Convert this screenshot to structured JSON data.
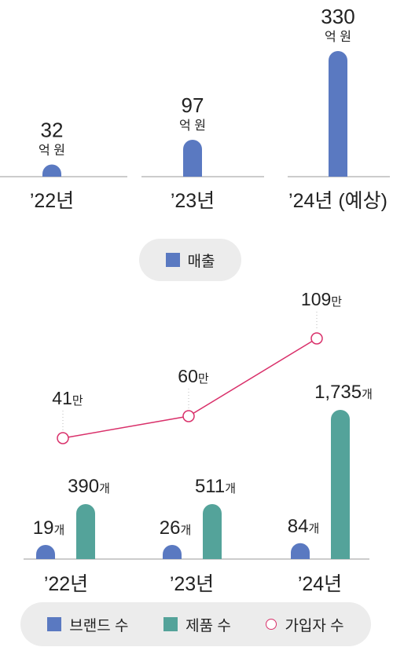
{
  "colors": {
    "revenue": "#5a79c1",
    "brands": "#5a79c1",
    "products": "#54a39a",
    "members": "#d9306a"
  },
  "chart_data": [
    {
      "type": "bar",
      "categories": [
        "’22년",
        "’23년",
        "’24년 (예상)"
      ],
      "series": [
        {
          "name": "매출",
          "values": [
            32,
            97,
            330
          ]
        }
      ],
      "value_labels": [
        "32",
        "97",
        "330"
      ],
      "unit_label": "억 원",
      "legend": "bottom-center"
    },
    {
      "type": "bar",
      "categories": [
        "’22년",
        "’23년",
        "’24년"
      ],
      "series": [
        {
          "name": "브랜드 수",
          "values": [
            19,
            26,
            84
          ],
          "value_labels": [
            "19",
            "26",
            "84"
          ],
          "unit": "개"
        },
        {
          "name": "제품 수",
          "values": [
            390,
            511,
            1735
          ],
          "value_labels": [
            "390",
            "511",
            "1,735"
          ],
          "unit": "개"
        },
        {
          "name": "가입자 수",
          "type": "line",
          "values": [
            41,
            60,
            109
          ],
          "value_labels": [
            "41",
            "60",
            "109"
          ],
          "unit": "만"
        }
      ],
      "legend": "bottom-center"
    }
  ]
}
